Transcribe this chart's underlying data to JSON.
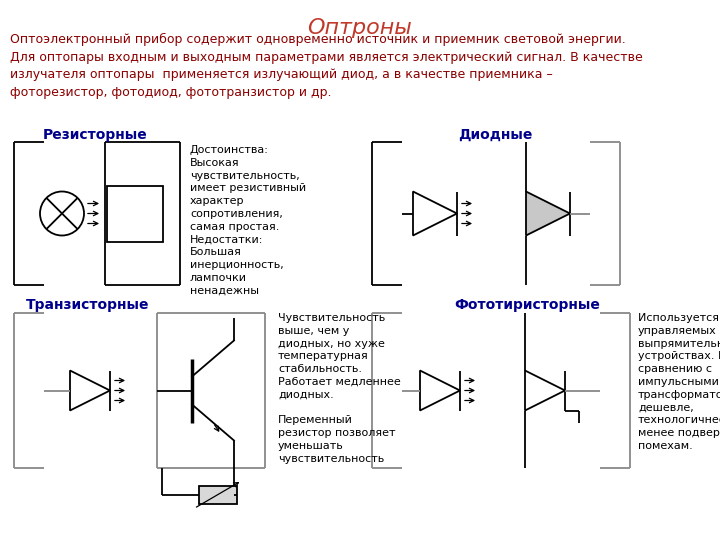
{
  "title": "Оптроны",
  "title_color": "#c0392b",
  "title_fontsize": 16,
  "body_text": "Оптоэлектронный прибор содержит одновременно источник и приемник световой энергии.\nДля оптопары входным и выходным параметрами является электрический сигнал. В качестве\nизлучателя оптопары  применяется излучающий диод, а в качестве приемника –\nфоторезистор, фотодиод, фототранзистор и др.",
  "body_color": "#8b0000",
  "body_fontsize": 9.0,
  "section_label_color": "#00008b",
  "section_label_fontsize": 10,
  "description_color": "#000000",
  "description_fontsize": 8.0,
  "background_color": "#ffffff",
  "resistive_label": "Резисторные",
  "resistive_desc": "Достоинства:\nВысокая\nчувствительность,\nимеет резистивный\nхарактер\nсопротивления,\nсамая простая.\nНедостатки:\nБольшая\nинерционность,\nлампочки\nненадежны",
  "diode_label": "Диодные",
  "transistor_label": "Транзисторные",
  "transistor_desc": "Чувствительность\nвыше, чем у\nдиодных, но хуже\nтемпературная\nстабильность.\nРаботает медленнее\nдиодных.\n\nПеременный\nрезистор позволяет\nуменьшать\nчувствительность",
  "thyristor_label": "Фототиристорные",
  "thyristor_desc": "Используется в\nуправляемых\nвыпрямительных\nустройствах. По\nсравнению с\nимпульсными\nтрансформаторами\nдешевле,\nтехнологичнее,\nменее подвержены\nпомехам."
}
